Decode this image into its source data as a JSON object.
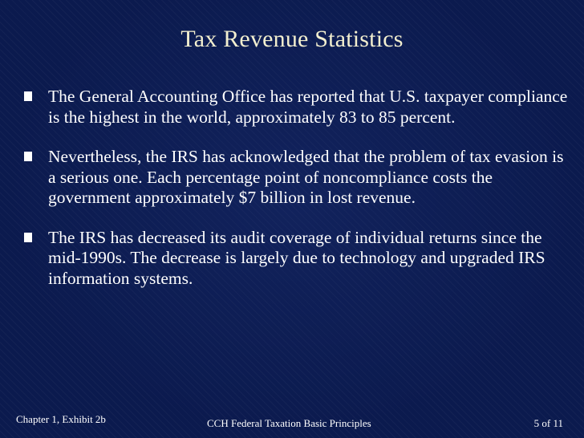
{
  "slide": {
    "title": "Tax Revenue Statistics",
    "bullets": [
      "The General Accounting Office has reported that U.S. taxpayer compliance is the highest in the world, approximately 83 to 85 percent.",
      "Nevertheless, the IRS has acknowledged that the problem of tax evasion is a serious one. Each percentage point of noncompliance costs the government approximately $7 billion in lost revenue.",
      "The IRS has decreased its audit coverage of individual returns since the mid-1990s.  The decrease is largely due to technology and upgraded IRS information systems."
    ],
    "bullet_icon": "square-bullet-icon",
    "colors": {
      "background": "#0b1a4e",
      "title": "#f3efcf",
      "text": "#ffffff"
    }
  },
  "footer": {
    "left": "Chapter 1, Exhibit 2b",
    "center": "CCH Federal Taxation Basic Principles",
    "right": "5 of 11"
  }
}
